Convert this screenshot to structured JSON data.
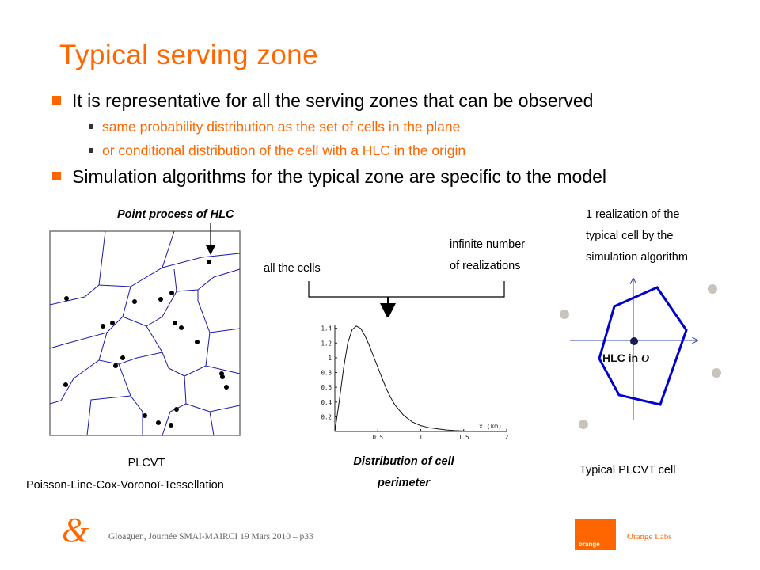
{
  "title": "Typical serving zone",
  "bullets": [
    {
      "text": "It is representative for all the serving zones that can be observed",
      "sub": [
        "same probability distribution as the set of cells in the plane",
        "or conditional distribution of the cell with a HLC in the origin"
      ]
    },
    {
      "text": "Simulation algorithms for the typical zone are specific to the model"
    }
  ],
  "left_figure": {
    "annotation": "Point process of HLC",
    "caption_line1": "PLCVT",
    "caption_line2": "Poisson-Line-Cox-Voronoï-Tessellation"
  },
  "middle_figure": {
    "label_all_cells": "all the cells",
    "label_infinite_1": "infinite number",
    "label_infinite_2": "of realizations",
    "caption_line1": "Distribution of cell",
    "caption_line2": "perimeter"
  },
  "chart_data": {
    "type": "line",
    "xlabel": "x (km)",
    "ylabel": "",
    "title": "",
    "xlim": [
      0,
      2
    ],
    "ylim": [
      0,
      1.45
    ],
    "x_ticks": [
      "0.5",
      "1",
      "1.5",
      "2"
    ],
    "y_ticks": [
      "0.2",
      "0.4",
      "0.6",
      "0.8",
      "1",
      "1.2",
      "1.4"
    ],
    "series": [
      {
        "x": [
          0.0,
          0.05,
          0.1,
          0.15,
          0.2,
          0.25,
          0.3,
          0.35,
          0.4,
          0.45,
          0.5,
          0.55,
          0.6,
          0.65,
          0.7,
          0.8,
          0.9,
          1.0,
          1.1,
          1.2,
          1.3,
          1.4,
          1.5,
          1.6,
          1.75,
          2.0
        ],
        "y": [
          0.0,
          0.4,
          0.85,
          1.2,
          1.38,
          1.43,
          1.4,
          1.3,
          1.17,
          1.02,
          0.87,
          0.72,
          0.58,
          0.46,
          0.36,
          0.22,
          0.13,
          0.08,
          0.05,
          0.035,
          0.02,
          0.012,
          0.006,
          0.003,
          0.001,
          0.0
        ]
      }
    ]
  },
  "right_figure": {
    "label_line1": "1 realization of the",
    "label_line2": "typical cell by the",
    "label_line3": "simulation algorithm",
    "center_label_prefix": "HLC in",
    "center_label_origin": "O",
    "caption": "Typical PLCVT cell"
  },
  "footer": {
    "text": "Gloaguen, Journée SMAI-MAIRCI 19 Mars 2010 – p33",
    "labs": "Orange Labs",
    "logo_word": "orange",
    "ampersand": "&"
  },
  "colors": {
    "accent": "#ff6600",
    "line_blue": "#0000cc",
    "point_grey": "#c8c4bc"
  }
}
